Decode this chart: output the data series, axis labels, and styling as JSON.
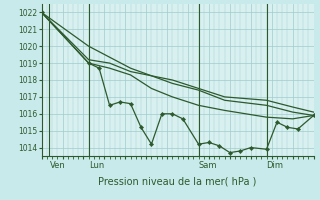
{
  "background_color": "#c8eaea",
  "plot_bg_color": "#d8f0f0",
  "grid_color": "#a0cccc",
  "line_color": "#2d5a2d",
  "marker_color": "#2d5a2d",
  "xlabel_text": "Pression niveau de la mer( hPa )",
  "ymin": 1013.5,
  "ymax": 1022.5,
  "yticks": [
    1014,
    1015,
    1016,
    1017,
    1018,
    1019,
    1020,
    1021,
    1022
  ],
  "xmin": 0,
  "xmax": 52,
  "day_labels": [
    "Ven",
    "Lun",
    "Sam",
    "Dim"
  ],
  "day_positions": [
    1.5,
    9,
    30,
    43
  ],
  "day_vlines": [
    1.5,
    9,
    30,
    43
  ],
  "lines": [
    {
      "x": [
        0,
        9,
        17,
        25,
        30,
        35,
        43,
        48,
        52
      ],
      "y": [
        1022.0,
        1020.0,
        1018.7,
        1017.8,
        1017.4,
        1016.8,
        1016.5,
        1016.1,
        1015.9
      ],
      "marker": false
    },
    {
      "x": [
        0,
        9,
        13,
        17,
        21,
        25,
        30,
        35,
        43,
        48,
        52
      ],
      "y": [
        1022.0,
        1019.0,
        1018.7,
        1018.3,
        1017.5,
        1017.0,
        1016.5,
        1016.2,
        1015.8,
        1015.7,
        1015.9
      ],
      "marker": false
    },
    {
      "x": [
        0,
        9,
        13,
        17,
        25,
        30,
        35,
        43,
        48,
        52
      ],
      "y": [
        1022.0,
        1019.2,
        1019.0,
        1018.5,
        1018.0,
        1017.5,
        1017.0,
        1016.8,
        1016.4,
        1016.1
      ],
      "marker": false
    },
    {
      "x": [
        0,
        9,
        11,
        13,
        15,
        17,
        19,
        21,
        23,
        25,
        27,
        30,
        32,
        34,
        36,
        38,
        40,
        43,
        45,
        47,
        49,
        52
      ],
      "y": [
        1022.0,
        1019.0,
        1018.7,
        1016.5,
        1016.7,
        1016.6,
        1015.2,
        1014.2,
        1016.0,
        1016.0,
        1015.7,
        1014.2,
        1014.3,
        1014.1,
        1013.7,
        1013.8,
        1014.0,
        1013.9,
        1015.5,
        1015.2,
        1015.1,
        1015.9
      ],
      "marker": true
    }
  ]
}
